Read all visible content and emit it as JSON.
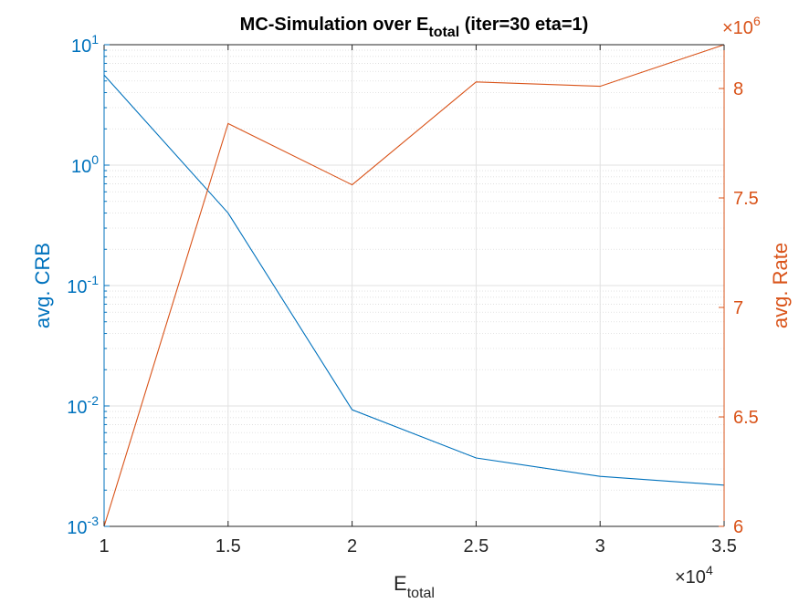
{
  "chart_data": {
    "type": "line",
    "title": "MC-Simulation over E_total (iter=30 eta=1)",
    "title_parts": {
      "pre": "MC-Simulation over E",
      "sub": "total",
      "post": " (iter=30 eta=1)"
    },
    "xlabel": {
      "main": "E",
      "sub": "total"
    },
    "x_exponent_label": {
      "base": "×10",
      "exp": "4"
    },
    "x": [
      1,
      1.5,
      2,
      2.5,
      3,
      3.5
    ],
    "xlim": [
      1,
      3.5
    ],
    "x_ticks": [
      "1",
      "1.5",
      "2",
      "2.5",
      "3",
      "3.5"
    ],
    "grid": true,
    "left_axis": {
      "label": "avg. CRB",
      "scale": "log",
      "ylim": [
        0.001,
        10
      ],
      "color": "#0072BD",
      "ticks": [
        {
          "base": "10",
          "exp": "-3",
          "value": 0.001
        },
        {
          "base": "10",
          "exp": "-2",
          "value": 0.01
        },
        {
          "base": "10",
          "exp": "-1",
          "value": 0.1
        },
        {
          "base": "10",
          "exp": "0",
          "value": 1
        },
        {
          "base": "10",
          "exp": "1",
          "value": 10
        }
      ]
    },
    "right_axis": {
      "label": "avg. Rate",
      "scale": "linear",
      "ylim": [
        6,
        8.2
      ],
      "color": "#D95319",
      "exponent_label": {
        "base": "×10",
        "exp": "6"
      },
      "ticks": [
        "6",
        "6.5",
        "7",
        "7.5",
        "8"
      ]
    },
    "series": [
      {
        "axis": "left",
        "color": "#0072BD",
        "values": [
          5.6,
          0.4,
          0.0093,
          0.0037,
          0.0026,
          0.0022
        ]
      },
      {
        "axis": "right",
        "color": "#D95319",
        "values": [
          6.0,
          7.84,
          7.56,
          8.03,
          8.01,
          8.2
        ]
      }
    ]
  }
}
